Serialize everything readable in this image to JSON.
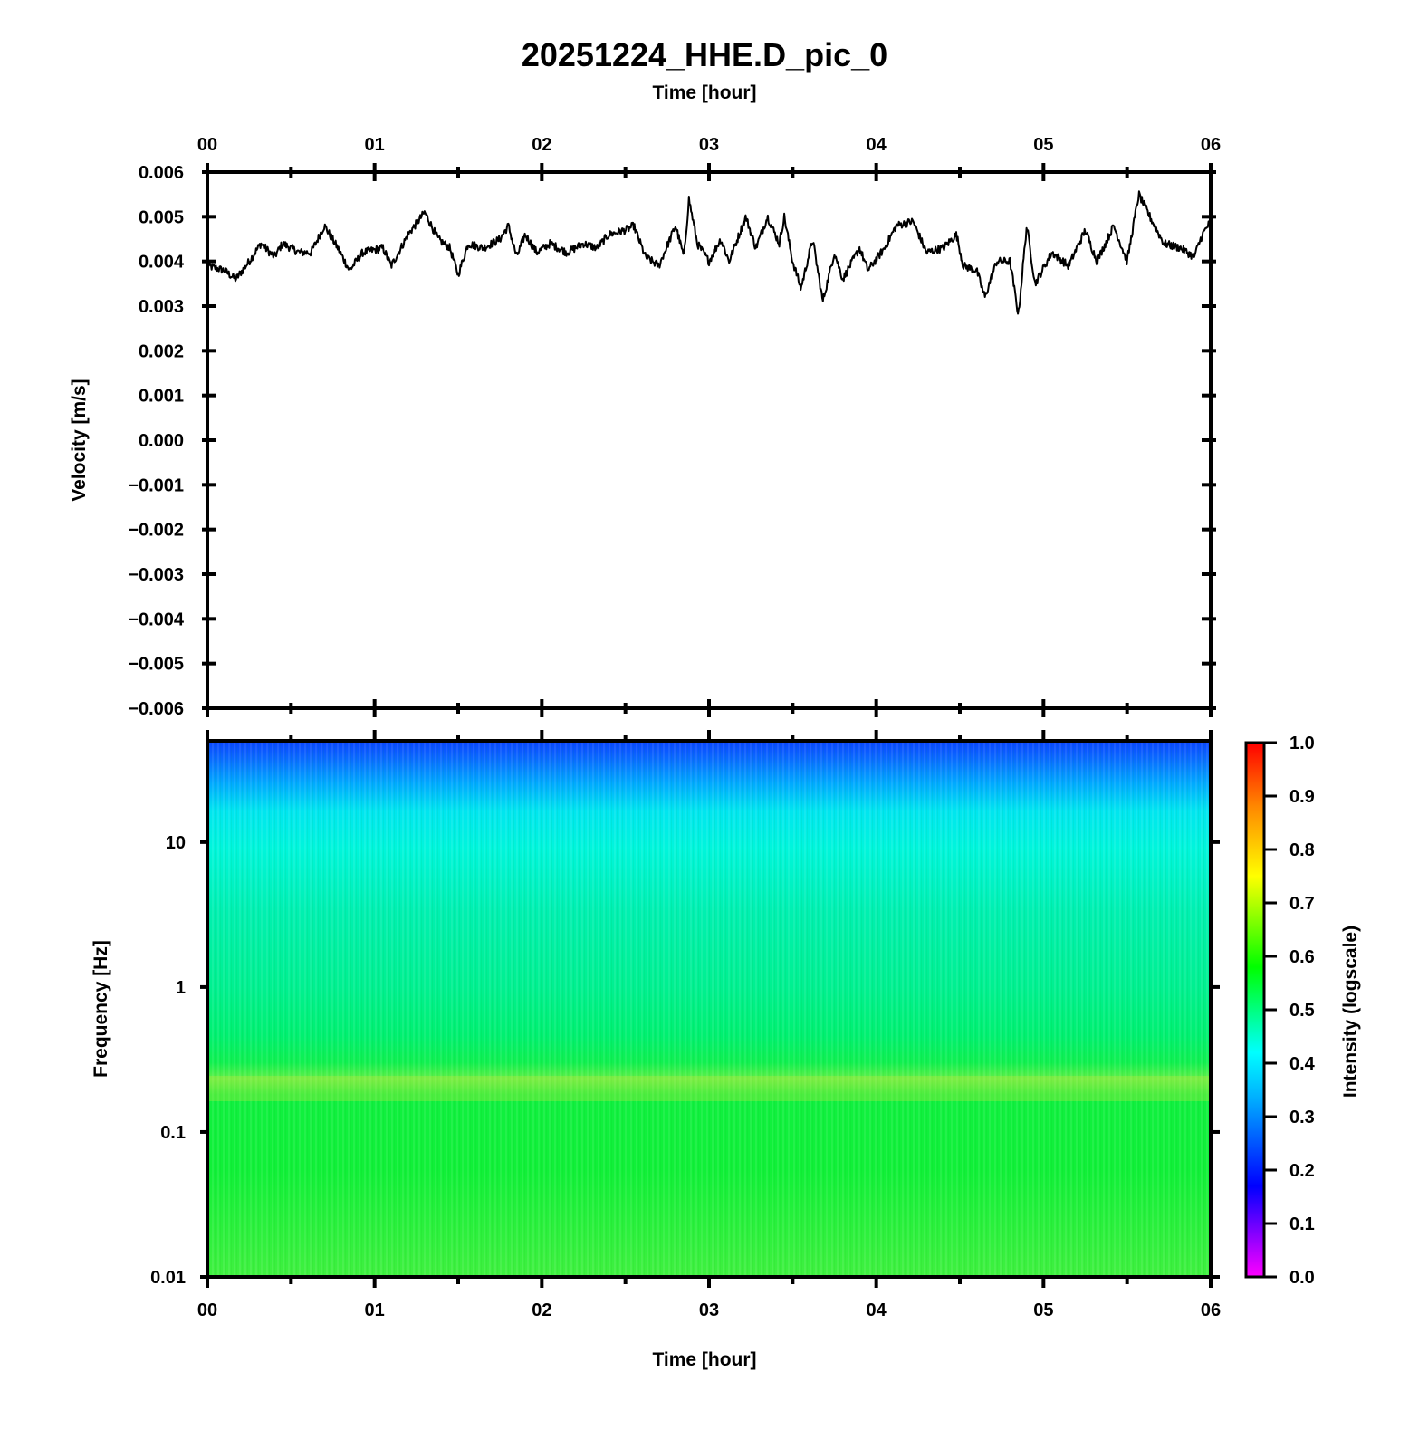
{
  "title": "20251224_HHE.D_pic_0",
  "chart_data": [
    {
      "type": "line",
      "name": "waveform",
      "xlabel": "Time [hour]",
      "ylabel": "Velocity [m/s]",
      "xlim": [
        0,
        6
      ],
      "ylim": [
        -0.006,
        0.006
      ],
      "xticks": [
        "00",
        "01",
        "02",
        "03",
        "04",
        "05",
        "06"
      ],
      "yticks": [
        "0.006",
        "0.005",
        "0.004",
        "0.003",
        "0.002",
        "0.001",
        "0.000",
        "−0.001",
        "−0.002",
        "−0.003",
        "−0.004",
        "−0.005",
        "−0.006"
      ],
      "series": [
        {
          "color": "#000000",
          "points": [
            [
              0.0,
              0.0039
            ],
            [
              0.1,
              0.0038
            ],
            [
              0.17,
              0.0036
            ],
            [
              0.25,
              0.004
            ],
            [
              0.32,
              0.0044
            ],
            [
              0.4,
              0.0041
            ],
            [
              0.45,
              0.0044
            ],
            [
              0.55,
              0.0042
            ],
            [
              0.62,
              0.0042
            ],
            [
              0.7,
              0.0048
            ],
            [
              0.78,
              0.0043
            ],
            [
              0.85,
              0.0038
            ],
            [
              0.93,
              0.0042
            ],
            [
              1.05,
              0.0043
            ],
            [
              1.1,
              0.0039
            ],
            [
              1.2,
              0.0046
            ],
            [
              1.3,
              0.0051
            ],
            [
              1.38,
              0.0045
            ],
            [
              1.45,
              0.0043
            ],
            [
              1.5,
              0.0037
            ],
            [
              1.56,
              0.0044
            ],
            [
              1.65,
              0.0043
            ],
            [
              1.75,
              0.0045
            ],
            [
              1.8,
              0.0048
            ],
            [
              1.85,
              0.0041
            ],
            [
              1.9,
              0.0046
            ],
            [
              1.97,
              0.0042
            ],
            [
              2.05,
              0.0044
            ],
            [
              2.15,
              0.0042
            ],
            [
              2.25,
              0.0044
            ],
            [
              2.33,
              0.0043
            ],
            [
              2.4,
              0.0046
            ],
            [
              2.5,
              0.0047
            ],
            [
              2.55,
              0.0048
            ],
            [
              2.62,
              0.0041
            ],
            [
              2.7,
              0.0039
            ],
            [
              2.8,
              0.0048
            ],
            [
              2.85,
              0.0041
            ],
            [
              2.88,
              0.0054
            ],
            [
              2.93,
              0.0044
            ],
            [
              3.0,
              0.004
            ],
            [
              3.07,
              0.0045
            ],
            [
              3.12,
              0.004
            ],
            [
              3.22,
              0.005
            ],
            [
              3.28,
              0.0043
            ],
            [
              3.35,
              0.005
            ],
            [
              3.42,
              0.0044
            ],
            [
              3.45,
              0.005
            ],
            [
              3.5,
              0.004
            ],
            [
              3.55,
              0.0034
            ],
            [
              3.62,
              0.0045
            ],
            [
              3.68,
              0.0031
            ],
            [
              3.75,
              0.0042
            ],
            [
              3.8,
              0.0036
            ],
            [
              3.9,
              0.0043
            ],
            [
              3.95,
              0.0038
            ],
            [
              4.05,
              0.0043
            ],
            [
              4.12,
              0.0048
            ],
            [
              4.22,
              0.0049
            ],
            [
              4.3,
              0.0042
            ],
            [
              4.4,
              0.0043
            ],
            [
              4.48,
              0.0046
            ],
            [
              4.52,
              0.0039
            ],
            [
              4.6,
              0.0038
            ],
            [
              4.65,
              0.0032
            ],
            [
              4.72,
              0.004
            ],
            [
              4.8,
              0.004
            ],
            [
              4.85,
              0.0028
            ],
            [
              4.9,
              0.0048
            ],
            [
              4.95,
              0.0035
            ],
            [
              5.05,
              0.0042
            ],
            [
              5.15,
              0.0039
            ],
            [
              5.25,
              0.0047
            ],
            [
              5.32,
              0.004
            ],
            [
              5.42,
              0.0048
            ],
            [
              5.5,
              0.004
            ],
            [
              5.57,
              0.0055
            ],
            [
              5.65,
              0.0049
            ],
            [
              5.72,
              0.0044
            ],
            [
              5.82,
              0.0043
            ],
            [
              5.9,
              0.0041
            ],
            [
              5.95,
              0.0046
            ],
            [
              6.0,
              0.0049
            ]
          ]
        }
      ]
    },
    {
      "type": "heatmap",
      "name": "spectrogram",
      "xlabel": "Time [hour]",
      "ylabel": "Frequency [Hz]",
      "xlim": [
        0,
        6
      ],
      "ylim": [
        0.01,
        50
      ],
      "yscale": "log",
      "xticks": [
        "00",
        "01",
        "02",
        "03",
        "04",
        "05",
        "06"
      ],
      "yticks": [
        "10",
        "1",
        "0.1",
        "0.01"
      ],
      "description_rows": [
        {
          "freq": 50,
          "intensity": 0.31
        },
        {
          "freq": 30,
          "intensity": 0.35
        },
        {
          "freq": 15,
          "intensity": 0.42
        },
        {
          "freq": 5,
          "intensity": 0.46
        },
        {
          "freq": 1,
          "intensity": 0.5
        },
        {
          "freq": 0.4,
          "intensity": 0.53
        },
        {
          "freq": 0.2,
          "intensity": 0.63
        },
        {
          "freq": 0.1,
          "intensity": 0.57
        },
        {
          "freq": 0.01,
          "intensity": 0.6
        }
      ]
    }
  ],
  "colorbar": {
    "label": "Intensity (logscale)",
    "range": [
      0,
      1
    ],
    "ticks": [
      "1.0",
      "0.9",
      "0.8",
      "0.7",
      "0.6",
      "0.5",
      "0.4",
      "0.3",
      "0.2",
      "0.1",
      "0.0"
    ],
    "colormap": "hsv-reversed (magenta-blue-cyan-green-yellow-red)"
  }
}
